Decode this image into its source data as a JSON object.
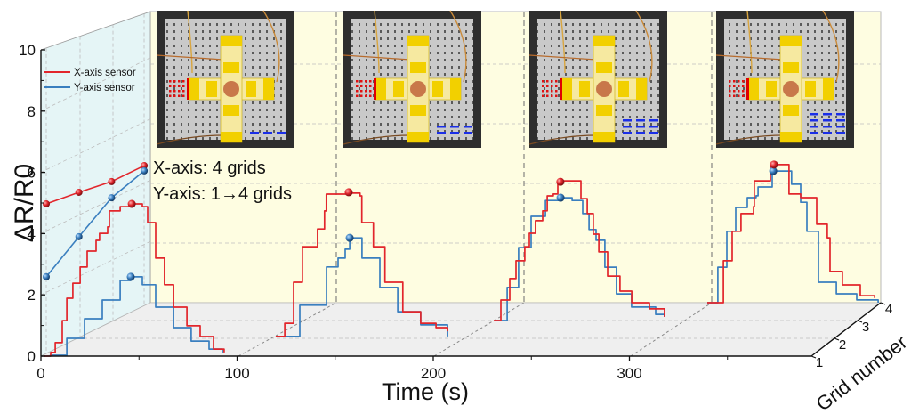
{
  "chart_data": {
    "type": "line",
    "title": "",
    "xlabel": "Time (s)",
    "ylabel": "ΔR/R0",
    "zlabel": "Grid number",
    "xlim": [
      0,
      400
    ],
    "ylim": [
      0,
      10
    ],
    "xticks": [
      "0",
      "100",
      "200",
      "300"
    ],
    "xtick_values": [
      0,
      100,
      200,
      300
    ],
    "yticks": [
      "0",
      "2",
      "4",
      "6",
      "8",
      "10"
    ],
    "ytick_values": [
      0,
      2,
      4,
      6,
      8,
      10
    ],
    "zticks": [
      "1",
      "2",
      "3",
      "4"
    ],
    "grid": true,
    "legend_position": "top-left",
    "legend": [
      {
        "name": "X-axis sensor",
        "color": "#e2262c"
      },
      {
        "name": "Y-axis sensor",
        "color": "#3a7fbf"
      }
    ],
    "annotation": [
      "X-axis: 4 grids",
      "Y-axis: 1→4 grids"
    ],
    "groups": [
      {
        "grid": 1,
        "x_sensor": [
          [
            1.8,
            0
          ],
          [
            5,
            0.12
          ],
          [
            7.3,
            0.44
          ],
          [
            10.9,
            1.16
          ],
          [
            13.2,
            1.89
          ],
          [
            16.3,
            2.38
          ],
          [
            20,
            2.91
          ],
          [
            23.6,
            3.43
          ],
          [
            28.1,
            3.78
          ],
          [
            29.9,
            4.01
          ],
          [
            34,
            4.22
          ],
          [
            34.9,
            4.74
          ],
          [
            40.4,
            4.88
          ],
          [
            46.3,
            4.97
          ],
          [
            51.7,
            4.88
          ],
          [
            54.4,
            4.36
          ],
          [
            58.5,
            3.2
          ],
          [
            63,
            2.33
          ],
          [
            67.6,
            1.6
          ],
          [
            74.4,
            0.99
          ],
          [
            81.2,
            0.64
          ],
          [
            88,
            0.23
          ],
          [
            93.4,
            0.12
          ]
        ],
        "y_sensor": [
          [
            4.5,
            0.03
          ],
          [
            13.2,
            0.58
          ],
          [
            22.2,
            1.22
          ],
          [
            31.3,
            1.83
          ],
          [
            40.4,
            2.47
          ],
          [
            45.8,
            2.59
          ],
          [
            51.7,
            2.33
          ],
          [
            58.5,
            1.6
          ],
          [
            67.6,
            0.93
          ],
          [
            76.6,
            0.49
          ],
          [
            85.7,
            0.23
          ],
          [
            92.5,
            0.09
          ]
        ],
        "x_peak": [
          46.3,
          4.97
        ],
        "y_peak": [
          45.8,
          2.59
        ]
      },
      {
        "grid": 2,
        "x_sensor": [
          [
            101.1,
            0.06
          ],
          [
            105.7,
            0.49
          ],
          [
            110.2,
            1.83
          ],
          [
            114.7,
            2.99
          ],
          [
            122.4,
            3.57
          ],
          [
            126,
            4.16
          ],
          [
            126.9,
            4.71
          ],
          [
            138.2,
            4.74
          ],
          [
            144.1,
            4.65
          ],
          [
            145,
            3.78
          ],
          [
            150.9,
            2.99
          ],
          [
            156.8,
            1.83
          ],
          [
            165.9,
            0.87
          ],
          [
            175,
            0.49
          ],
          [
            182.8,
            0.35
          ],
          [
            188.7,
            0.23
          ]
        ],
        "y_sensor": [
          [
            102.5,
            0.06
          ],
          [
            113.4,
            1.08
          ],
          [
            127,
            2.33
          ],
          [
            132.9,
            2.62
          ],
          [
            136.5,
            2.91
          ],
          [
            138.8,
            3.28
          ],
          [
            145.1,
            2.62
          ],
          [
            154.2,
            1.66
          ],
          [
            163.3,
            0.87
          ],
          [
            175,
            0.44
          ],
          [
            188.7,
            0.06
          ]
        ],
        "x_peak": [
          138.3,
          4.77
        ],
        "y_peak": [
          138.8,
          3.28
        ]
      },
      {
        "grid": 3,
        "x_sensor": [
          [
            193.7,
            0
          ],
          [
            197.3,
            0.67
          ],
          [
            201.8,
            1.37
          ],
          [
            205,
            1.95
          ],
          [
            209.5,
            2.41
          ],
          [
            211.8,
            2.85
          ],
          [
            214.9,
            3.26
          ],
          [
            218.6,
            3.58
          ],
          [
            220.9,
            4.07
          ],
          [
            224,
            4.13
          ],
          [
            226.3,
            4.56
          ],
          [
            235.4,
            4.56
          ],
          [
            238.1,
            3.98
          ],
          [
            241.3,
            3.49
          ],
          [
            244.4,
            2.82
          ],
          [
            247.2,
            2.24
          ],
          [
            251.7,
            1.45
          ],
          [
            258,
            0.96
          ],
          [
            264,
            0.58
          ],
          [
            273,
            0.38
          ],
          [
            280.7,
            0.12
          ]
        ],
        "y_sensor": [
          [
            194.6,
            0
          ],
          [
            200.5,
            1.08
          ],
          [
            206.3,
            2.38
          ],
          [
            212.7,
            3.4
          ],
          [
            220,
            3.92
          ],
          [
            227.7,
            4.01
          ],
          [
            233.6,
            3.92
          ],
          [
            239,
            3.49
          ],
          [
            242.2,
            2.97
          ],
          [
            245.8,
            2.62
          ],
          [
            250.3,
            1.74
          ],
          [
            256.2,
            0.87
          ],
          [
            263.9,
            0.44
          ],
          [
            276.2,
            0.2
          ],
          [
            280.7,
            0.12
          ]
        ],
        "x_peak": [
          227.6,
          4.53
        ],
        "y_peak": [
          227.7,
          4.01
        ]
      },
      {
        "grid": 4,
        "x_sensor": [
          [
            283.9,
            0
          ],
          [
            292.1,
            1.37
          ],
          [
            296.6,
            2.33
          ],
          [
            301.1,
            2.91
          ],
          [
            307.5,
            3.14
          ],
          [
            307.9,
            3.98
          ],
          [
            314.7,
            3.98
          ],
          [
            316.1,
            4.51
          ],
          [
            323.8,
            4.51
          ],
          [
            325.6,
            3.55
          ],
          [
            331.5,
            3.43
          ],
          [
            339.7,
            2.56
          ],
          [
            345.1,
            2.12
          ],
          [
            346.5,
            1.02
          ],
          [
            352.8,
            0.58
          ],
          [
            361.9,
            0.23
          ],
          [
            369.2,
            0.15
          ]
        ],
        "y_sensor": [
          [
            283.9,
            0
          ],
          [
            289.3,
            1.16
          ],
          [
            293.9,
            2.33
          ],
          [
            298.4,
            3.11
          ],
          [
            304.3,
            3.43
          ],
          [
            308.8,
            3.49
          ],
          [
            309.8,
            3.78
          ],
          [
            314.3,
            3.78
          ],
          [
            317,
            4.3
          ],
          [
            322.4,
            4.3
          ],
          [
            326.9,
            3.87
          ],
          [
            331.5,
            3.28
          ],
          [
            334.7,
            2.33
          ],
          [
            340.6,
            0.67
          ],
          [
            349.7,
            0.29
          ],
          [
            360.1,
            0.09
          ],
          [
            371,
            0
          ]
        ],
        "x_peak": [
          317.9,
          4.51
        ],
        "y_peak": [
          317.5,
          4.3
        ]
      }
    ],
    "projection": {
      "grid": [
        1,
        2,
        3,
        4
      ],
      "x_sensor": [
        4.97,
        5.35,
        5.7,
        6.22
      ],
      "y_sensor": [
        2.59,
        3.9,
        5.17,
        6.05
      ]
    },
    "insets": [
      {
        "x_grids": 4,
        "y_grids": 1
      },
      {
        "x_grids": 4,
        "y_grids": 2
      },
      {
        "x_grids": 4,
        "y_grids": 3
      },
      {
        "x_grids": 4,
        "y_grids": 4
      }
    ]
  }
}
